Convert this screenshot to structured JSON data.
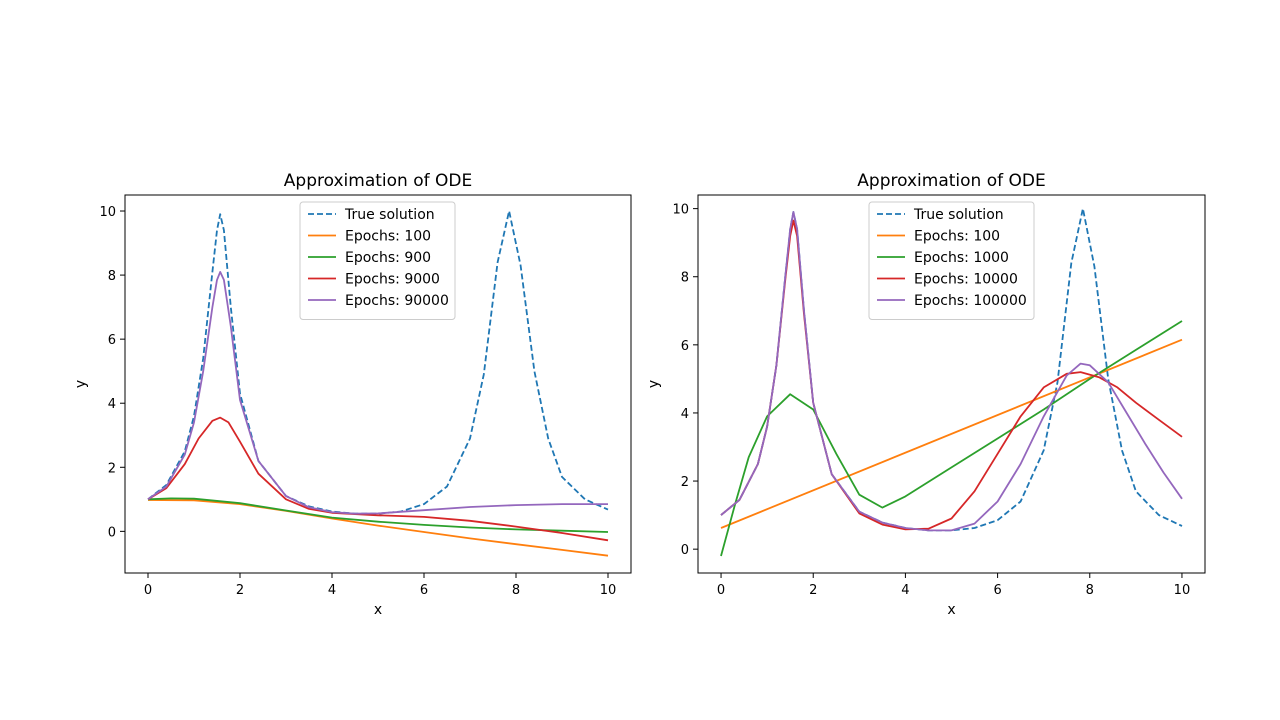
{
  "chart_data": [
    {
      "type": "line",
      "title": "Approximation of ODE",
      "xlabel": "x",
      "ylabel": "y",
      "xlim": [
        -0.5,
        10.5
      ],
      "ylim": [
        -1.3,
        10.5
      ],
      "xticks": [
        0,
        2,
        4,
        6,
        8,
        10
      ],
      "yticks": [
        0,
        2,
        4,
        6,
        8,
        10
      ],
      "legend_position": "top-center",
      "grid": false,
      "series": [
        {
          "name": "True solution",
          "style": "dashed",
          "color": "#1f77b4",
          "x": [
            0,
            0.4,
            0.8,
            1.0,
            1.2,
            1.4,
            1.5,
            1.57,
            1.65,
            1.8,
            2.0,
            2.4,
            3.0,
            3.5,
            4.0,
            4.5,
            5.0,
            5.5,
            6.0,
            6.5,
            7.0,
            7.3,
            7.6,
            7.85,
            8.1,
            8.4,
            8.7,
            9.0,
            9.5,
            10.0
          ],
          "y": [
            1.0,
            1.45,
            2.5,
            3.6,
            5.4,
            8.1,
            9.4,
            9.9,
            9.4,
            7.0,
            4.3,
            2.2,
            1.1,
            0.78,
            0.62,
            0.55,
            0.55,
            0.62,
            0.85,
            1.4,
            2.9,
            4.9,
            8.4,
            10.0,
            8.3,
            5.0,
            2.9,
            1.7,
            1.0,
            0.68
          ]
        },
        {
          "name": "Epochs: 100",
          "style": "solid",
          "color": "#ff7f0e",
          "x": [
            0,
            1,
            2,
            3,
            4,
            5,
            6,
            7,
            8,
            9,
            10
          ],
          "y": [
            0.98,
            0.97,
            0.85,
            0.64,
            0.4,
            0.18,
            -0.02,
            -0.22,
            -0.4,
            -0.58,
            -0.76
          ]
        },
        {
          "name": "Epochs: 900",
          "style": "solid",
          "color": "#2ca02c",
          "x": [
            0,
            0.5,
            1,
            2,
            3,
            4,
            5,
            6,
            7,
            8,
            9,
            10
          ],
          "y": [
            1.0,
            1.03,
            1.02,
            0.88,
            0.65,
            0.43,
            0.3,
            0.2,
            0.12,
            0.06,
            0.02,
            -0.02
          ]
        },
        {
          "name": "Epochs: 9000",
          "style": "solid",
          "color": "#d62728",
          "x": [
            0,
            0.4,
            0.8,
            1.1,
            1.4,
            1.57,
            1.75,
            2.0,
            2.4,
            3.0,
            3.5,
            4.0,
            5.0,
            6.0,
            7.0,
            8.0,
            9.0,
            10.0
          ],
          "y": [
            1.0,
            1.35,
            2.1,
            2.9,
            3.45,
            3.55,
            3.4,
            2.8,
            1.8,
            1.0,
            0.7,
            0.58,
            0.5,
            0.45,
            0.33,
            0.15,
            -0.05,
            -0.28
          ]
        },
        {
          "name": "Epochs: 90000",
          "style": "solid",
          "color": "#9467bd",
          "x": [
            0,
            0.4,
            0.8,
            1.0,
            1.2,
            1.4,
            1.5,
            1.57,
            1.65,
            1.8,
            2.0,
            2.4,
            3.0,
            3.5,
            4.0,
            4.5,
            5.0,
            6.0,
            7.0,
            8.0,
            9.0,
            10.0
          ],
          "y": [
            1.0,
            1.4,
            2.4,
            3.4,
            5.0,
            7.0,
            7.85,
            8.1,
            7.85,
            6.4,
            4.1,
            2.2,
            1.1,
            0.75,
            0.6,
            0.55,
            0.56,
            0.66,
            0.76,
            0.82,
            0.85,
            0.85
          ]
        }
      ]
    },
    {
      "type": "line",
      "title": "Approximation of ODE",
      "xlabel": "x",
      "ylabel": "y",
      "xlim": [
        -0.5,
        10.5
      ],
      "ylim": [
        -0.7,
        10.4
      ],
      "xticks": [
        0,
        2,
        4,
        6,
        8,
        10
      ],
      "yticks": [
        0,
        2,
        4,
        6,
        8,
        10
      ],
      "legend_position": "top-center",
      "grid": false,
      "series": [
        {
          "name": "True solution",
          "style": "dashed",
          "color": "#1f77b4",
          "x": [
            0,
            0.4,
            0.8,
            1.0,
            1.2,
            1.4,
            1.5,
            1.57,
            1.65,
            1.8,
            2.0,
            2.4,
            3.0,
            3.5,
            4.0,
            4.5,
            5.0,
            5.5,
            6.0,
            6.5,
            7.0,
            7.3,
            7.6,
            7.85,
            8.1,
            8.4,
            8.7,
            9.0,
            9.5,
            10.0
          ],
          "y": [
            1.0,
            1.45,
            2.5,
            3.6,
            5.4,
            8.1,
            9.4,
            9.9,
            9.4,
            7.0,
            4.3,
            2.2,
            1.1,
            0.78,
            0.62,
            0.55,
            0.55,
            0.62,
            0.85,
            1.4,
            2.9,
            4.9,
            8.4,
            10.0,
            8.3,
            5.0,
            2.9,
            1.7,
            1.0,
            0.68
          ]
        },
        {
          "name": "Epochs: 100",
          "style": "solid",
          "color": "#ff7f0e",
          "x": [
            0,
            10
          ],
          "y": [
            0.62,
            6.15
          ]
        },
        {
          "name": "Epochs: 1000",
          "style": "solid",
          "color": "#2ca02c",
          "x": [
            0,
            0.3,
            0.6,
            1.0,
            1.5,
            2.0,
            2.5,
            3.0,
            3.5,
            4.0,
            5.0,
            6.0,
            7.0,
            8.0,
            9.0,
            10.0
          ],
          "y": [
            -0.2,
            1.3,
            2.7,
            3.9,
            4.55,
            4.1,
            2.8,
            1.6,
            1.22,
            1.55,
            2.4,
            3.25,
            4.1,
            5.0,
            5.85,
            6.7
          ]
        },
        {
          "name": "Epochs: 10000",
          "style": "solid",
          "color": "#d62728",
          "x": [
            0,
            0.4,
            0.8,
            1.0,
            1.2,
            1.4,
            1.5,
            1.57,
            1.65,
            1.8,
            2.0,
            2.4,
            3.0,
            3.5,
            4.0,
            4.5,
            5.0,
            5.5,
            6.0,
            6.5,
            7.0,
            7.5,
            7.8,
            8.2,
            8.6,
            9.0,
            9.5,
            10.0
          ],
          "y": [
            1.0,
            1.45,
            2.5,
            3.6,
            5.4,
            8.0,
            9.2,
            9.65,
            9.2,
            6.9,
            4.3,
            2.2,
            1.05,
            0.72,
            0.58,
            0.6,
            0.9,
            1.7,
            2.8,
            3.9,
            4.75,
            5.15,
            5.2,
            5.05,
            4.75,
            4.3,
            3.8,
            3.3
          ]
        },
        {
          "name": "Epochs: 100000",
          "style": "solid",
          "color": "#9467bd",
          "x": [
            0,
            0.4,
            0.8,
            1.0,
            1.2,
            1.4,
            1.5,
            1.57,
            1.65,
            1.8,
            2.0,
            2.4,
            3.0,
            3.5,
            4.0,
            4.5,
            5.0,
            5.5,
            6.0,
            6.5,
            7.0,
            7.5,
            7.8,
            8.0,
            8.4,
            8.8,
            9.2,
            9.6,
            10.0
          ],
          "y": [
            1.0,
            1.45,
            2.5,
            3.6,
            5.4,
            8.1,
            9.4,
            9.9,
            9.4,
            7.0,
            4.3,
            2.2,
            1.1,
            0.78,
            0.62,
            0.55,
            0.55,
            0.75,
            1.4,
            2.5,
            3.9,
            5.1,
            5.45,
            5.4,
            4.9,
            4.0,
            3.1,
            2.25,
            1.48
          ]
        }
      ]
    }
  ]
}
